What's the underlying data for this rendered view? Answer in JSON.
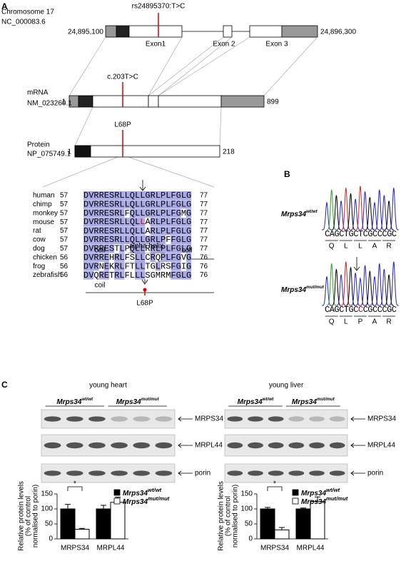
{
  "panel_a": {
    "label": "A",
    "gene": {
      "name": "Chromosome 17",
      "accession": "NC_000083.6",
      "start": "24,895,100",
      "end": "24,896,300",
      "variant": "rs24895370:T>C",
      "exons": [
        "Exon1",
        "Exon 2",
        "Exon 3"
      ]
    },
    "mrna": {
      "name": "mRNA",
      "accession": "NM_023260.1",
      "start": 1,
      "end": 899,
      "variant": "c.203T>C"
    },
    "protein": {
      "name": "Protein",
      "accession": "NP_075749.1",
      "start": 1,
      "end": 218,
      "variant": "L68P"
    },
    "alignment": [
      {
        "species": "human",
        "start": 57,
        "sequence": "DVRRESRLLQLLGRLPLFGLG",
        "end": 77
      },
      {
        "species": "chimp",
        "start": 57,
        "sequence": "DVRRESRLLQLLGRLPLFGLG",
        "end": 77
      },
      {
        "species": "monkey",
        "start": 57,
        "sequence": "DVRRESRLFQLLGRLPLFGMG",
        "end": 77
      },
      {
        "species": "mouse",
        "start": 57,
        "sequence": "DVRRESRLLQLLARLPLFGLG",
        "end": 77
      },
      {
        "species": "rat",
        "start": 57,
        "sequence": "DVRRESRLLQLLARLPLFGLG",
        "end": 77
      },
      {
        "species": "cow",
        "start": 57,
        "sequence": "DVRRESRLLQLLGRLPFFGLG",
        "end": 77
      },
      {
        "species": "dog",
        "start": 57,
        "sequence": "DVRRESTLPQLLRRLPLFGLG",
        "end": 77
      },
      {
        "species": "chicken",
        "start": 56,
        "sequence": "DVRREHRLFSLLCRQPLFGVG",
        "end": 76
      },
      {
        "species": "frog",
        "start": 56,
        "sequence": "DVRNEKRLFTLLTGLRSFGIG",
        "end": 76
      },
      {
        "species": "zebrafish",
        "start": 56,
        "sequence": "DVQRETRLFLLLSGMRMFGLG",
        "end": 76
      }
    ],
    "structure": {
      "before": [
        "coil",
        "alpha helix",
        "coil"
      ],
      "after": [
        "coil"
      ],
      "mutation": "L68P"
    }
  },
  "panel_b": {
    "label": "B",
    "traces": [
      {
        "gene": "Mrps34",
        "genotype": "wt/wt",
        "bases": "CAGCTGCTCGCCCGC",
        "residues": [
          "Q",
          "L",
          "L",
          "A",
          "R"
        ]
      },
      {
        "gene": "Mrps34",
        "genotype": "mut/mut",
        "bases": "CAGCTGCCCGCCCGC",
        "residues": [
          "Q",
          "L",
          "P",
          "A",
          "R"
        ]
      }
    ]
  },
  "panel_c": {
    "label": "C",
    "panels": [
      {
        "title": "young heart",
        "groups": [
          {
            "gene": "Mrps34",
            "genotype": "wt/wt"
          },
          {
            "gene": "Mrps34",
            "genotype": "mut/mut"
          }
        ],
        "blots": [
          "MRPS34",
          "MRPL44",
          "porin"
        ],
        "chart_data": {
          "type": "bar",
          "y_label": [
            "Relative protein levels",
            "(% of control",
            "normalised to porin)"
          ],
          "categories": [
            "MRPS34",
            "MRPL44"
          ],
          "series": [
            {
              "name": "Mrps34",
              "superscript": "wt/wt",
              "color": "#000000",
              "values": [
                100,
                100
              ],
              "errors": [
                15,
                12
              ]
            },
            {
              "name": "Mrps34",
              "superscript": "mut/mut",
              "color": "#ffffff",
              "values": [
                32,
                122
              ],
              "errors": [
                3,
                17
              ]
            }
          ],
          "ylim": [
            0,
            150
          ],
          "yticks": [
            0,
            50,
            100,
            150
          ],
          "significance": "*"
        }
      },
      {
        "title": "young liver",
        "groups": [
          {
            "gene": "Mrps34",
            "genotype": "wt/wt"
          },
          {
            "gene": "Mrps34",
            "genotype": "mut/mut"
          }
        ],
        "blots": [
          "MRPS34",
          "MRPL44",
          "porin"
        ],
        "chart_data": {
          "type": "bar",
          "y_label": [
            "Relative protein levels",
            "(% of control",
            "normalised to porin)"
          ],
          "categories": [
            "MRPS34",
            "MRPL44"
          ],
          "series": [
            {
              "name": "Mrps34",
              "superscript": "wt/wt",
              "color": "#000000",
              "values": [
                100,
                100
              ],
              "errors": [
                5,
                3
              ]
            },
            {
              "name": "Mrps34",
              "superscript": "mut/mut",
              "color": "#ffffff",
              "values": [
                30,
                125
              ],
              "errors": [
                8,
                15
              ]
            }
          ],
          "ylim": [
            0,
            150
          ],
          "yticks": [
            0,
            50,
            100,
            150
          ],
          "significance": "*"
        }
      }
    ]
  }
}
